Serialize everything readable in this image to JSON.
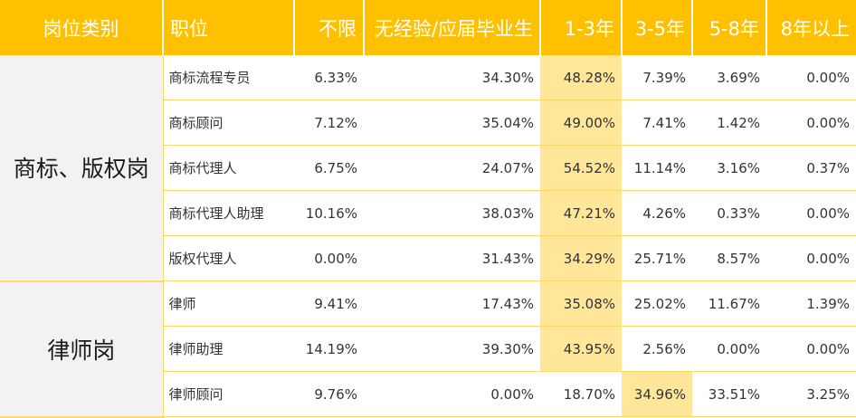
{
  "header": {
    "category": "岗位类别",
    "position": "职位",
    "col_any": "不限",
    "col_grad": "无经验/应届毕业生",
    "col_1_3": "1-3年",
    "col_3_5": "3-5年",
    "col_5_8": "5-8年",
    "col_8plus": "8年以上"
  },
  "highlight_color": "#ffe699",
  "header_color": "#ffc000",
  "groups": [
    {
      "category": "商标、版权岗",
      "rows": [
        {
          "position": "商标流程专员",
          "any": "6.33%",
          "grad": "34.30%",
          "y1_3": "48.28%",
          "y3_5": "7.39%",
          "y5_8": "3.69%",
          "y8plus": "0.00%"
        },
        {
          "position": "商标顾问",
          "any": "7.12%",
          "grad": "35.04%",
          "y1_3": "49.00%",
          "y3_5": "7.41%",
          "y5_8": "1.42%",
          "y8plus": "0.00%"
        },
        {
          "position": "商标代理人",
          "any": "6.75%",
          "grad": "24.07%",
          "y1_3": "54.52%",
          "y3_5": "11.14%",
          "y5_8": "3.16%",
          "y8plus": "0.37%"
        },
        {
          "position": "商标代理人助理",
          "any": "10.16%",
          "grad": "38.03%",
          "y1_3": "47.21%",
          "y3_5": "4.26%",
          "y5_8": "0.33%",
          "y8plus": "0.00%"
        },
        {
          "position": "版权代理人",
          "any": "0.00%",
          "grad": "31.43%",
          "y1_3": "34.29%",
          "y3_5": "25.71%",
          "y5_8": "8.57%",
          "y8plus": "0.00%"
        }
      ]
    },
    {
      "category": "律师岗",
      "rows": [
        {
          "position": "律师",
          "any": "9.41%",
          "grad": "17.43%",
          "y1_3": "35.08%",
          "y3_5": "25.02%",
          "y5_8": "11.67%",
          "y8plus": "1.39%"
        },
        {
          "position": "律师助理",
          "any": "14.19%",
          "grad": "39.30%",
          "y1_3": "43.95%",
          "y3_5": "2.56%",
          "y5_8": "0.00%",
          "y8plus": "0.00%"
        },
        {
          "position": "律师顾问",
          "any": "9.76%",
          "grad": "0.00%",
          "y1_3": "18.70%",
          "y3_5": "34.96%",
          "y5_8": "33.51%",
          "y8plus": "3.25%"
        }
      ]
    }
  ]
}
